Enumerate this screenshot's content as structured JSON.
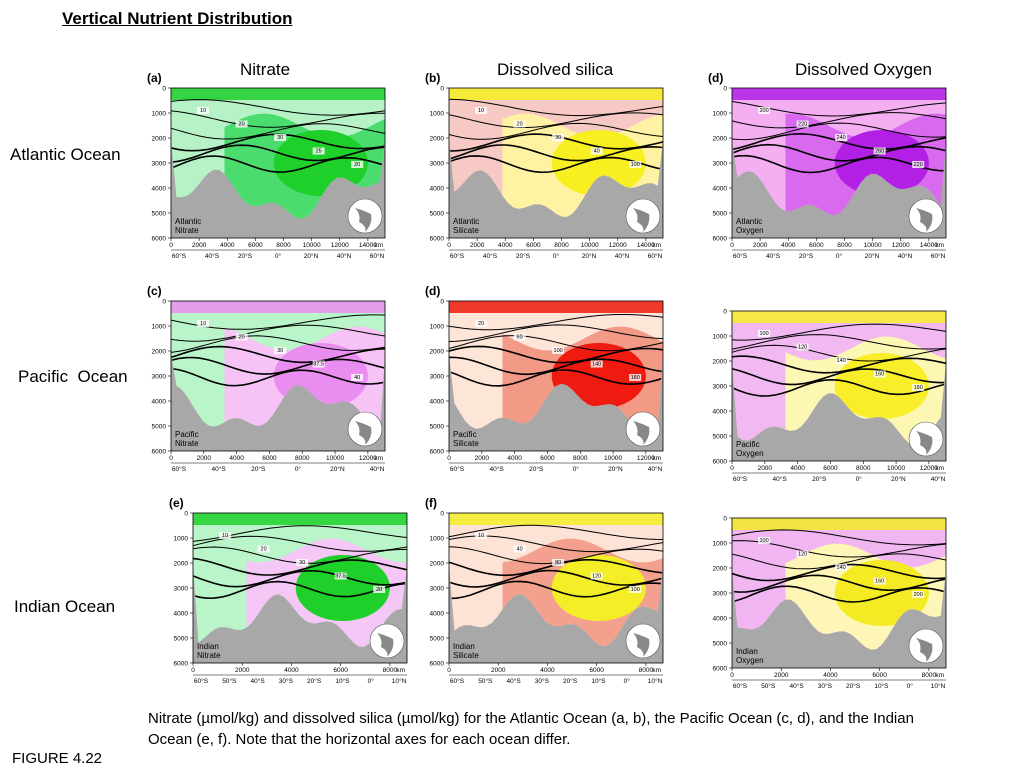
{
  "title": "Vertical Nutrient Distribution",
  "columns": [
    "Nitrate",
    "Dissolved silica",
    "Dissolved Oxygen"
  ],
  "rows": [
    "Atlantic Ocean",
    "Pacific  Ocean",
    "Indian Ocean"
  ],
  "caption": "Nitrate (µmol/kg) and dissolved silica (µmol/kg) for the Atlantic Ocean (a, b), the Pacific Ocean (c, d), and the Indian Ocean (e, f). Note that the horizontal axes for each ocean differ.",
  "figure_label": "FIGURE 4.22",
  "depth_ticks": [
    "0",
    "1000",
    "2000",
    "3000",
    "4000",
    "5000",
    "6000"
  ],
  "km_unit": "km",
  "panels": [
    {
      "letter": "(a)",
      "name": "Atlantic\nNitrate",
      "colors": [
        "#b6f2c6",
        "#4bdc6e",
        "#1fcf2a"
      ],
      "x_ticks": [
        "0",
        "2000",
        "4000",
        "6000",
        "8000",
        "10000",
        "12000",
        "14000"
      ],
      "lat_ticks": [
        "60°S",
        "40°S",
        "20°S",
        "0°",
        "20°N",
        "40°N",
        "60°N"
      ],
      "contour_labels": [
        "10",
        "20",
        "30",
        "25",
        "20"
      ]
    },
    {
      "letter": "(b)",
      "name": "Atlantic\nSilicate",
      "colors": [
        "#f7c9c5",
        "#fff3a3",
        "#f7ef1f"
      ],
      "x_ticks": [
        "0",
        "2000",
        "4000",
        "6000",
        "8000",
        "10000",
        "12000",
        "14000"
      ],
      "lat_ticks": [
        "60°S",
        "40°S",
        "20°S",
        "0°",
        "20°N",
        "40°N",
        "60°N"
      ],
      "contour_labels": [
        "10",
        "20",
        "30",
        "40",
        "100"
      ]
    },
    {
      "letter": "(d)",
      "name": "Atlantic\nOxygen",
      "colors": [
        "#f4aef2",
        "#d96af0",
        "#b21fe5"
      ],
      "x_ticks": [
        "0",
        "2000",
        "4000",
        "6000",
        "8000",
        "10000",
        "12000",
        "14000"
      ],
      "lat_ticks": [
        "60°S",
        "40°S",
        "20°S",
        "0°",
        "20°N",
        "40°N",
        "60°N"
      ],
      "contour_labels": [
        "200",
        "220",
        "240",
        "260",
        "220"
      ]
    },
    {
      "letter": "(c)",
      "name": "Pacific\nNitrate",
      "colors": [
        "#b9f5c8",
        "#f7c3f6",
        "#ea8df0"
      ],
      "x_ticks": [
        "0",
        "2000",
        "4000",
        "6000",
        "8000",
        "10000",
        "12000"
      ],
      "lat_ticks": [
        "60°S",
        "40°S",
        "20°S",
        "0°",
        "20°N",
        "40°N"
      ],
      "contour_labels": [
        "10",
        "20",
        "30",
        "37.5",
        "40"
      ]
    },
    {
      "letter": "(d)",
      "name": "Pacific\nSilicate",
      "colors": [
        "#fde6d8",
        "#f29a86",
        "#ef1a10"
      ],
      "x_ticks": [
        "0",
        "2000",
        "4000",
        "6000",
        "8000",
        "10000",
        "12000"
      ],
      "lat_ticks": [
        "60°S",
        "40°S",
        "20°S",
        "0°",
        "20°N",
        "40°N"
      ],
      "contour_labels": [
        "20",
        "60",
        "100",
        "140",
        "180"
      ]
    },
    {
      "letter": "",
      "name": "Pacific\nOxygen",
      "colors": [
        "#f1b8f2",
        "#fdf7b4",
        "#f8ee2a"
      ],
      "x_ticks": [
        "0",
        "2000",
        "4000",
        "6000",
        "8000",
        "10000",
        "12000"
      ],
      "lat_ticks": [
        "60°S",
        "40°S",
        "20°S",
        "0°",
        "20°N",
        "40°N"
      ],
      "contour_labels": [
        "100",
        "120",
        "140",
        "160",
        "180"
      ]
    },
    {
      "letter": "(e)",
      "name": "Indian\nNitrate",
      "colors": [
        "#b9f5c8",
        "#f4c7f6",
        "#1fcf2a"
      ],
      "x_ticks": [
        "0",
        "2000",
        "4000",
        "6000",
        "8000"
      ],
      "lat_ticks": [
        "60°S",
        "50°S",
        "40°S",
        "30°S",
        "20°S",
        "10°S",
        "0°",
        "10°N"
      ],
      "contour_labels": [
        "10",
        "20",
        "30",
        "37.5",
        "20"
      ]
    },
    {
      "letter": "(f)",
      "name": "Indian\nSilicate",
      "colors": [
        "#fde2d6",
        "#f3a18e",
        "#f4ee28"
      ],
      "x_ticks": [
        "0",
        "2000",
        "4000",
        "6000",
        "8000"
      ],
      "lat_ticks": [
        "60°S",
        "50°S",
        "40°S",
        "30°S",
        "20°S",
        "10°S",
        "0°",
        "10°N"
      ],
      "contour_labels": [
        "10",
        "40",
        "80",
        "120",
        "100"
      ]
    },
    {
      "letter": "",
      "name": "Indian\nOxygen",
      "colors": [
        "#f1b6f2",
        "#fdf6b6",
        "#f5eb25"
      ],
      "x_ticks": [
        "0",
        "2000",
        "4000",
        "6000",
        "8000"
      ],
      "lat_ticks": [
        "60°S",
        "50°S",
        "40°S",
        "30°S",
        "20°S",
        "10°S",
        "0°",
        "10°N"
      ],
      "contour_labels": [
        "100",
        "120",
        "140",
        "160",
        "200"
      ]
    }
  ]
}
